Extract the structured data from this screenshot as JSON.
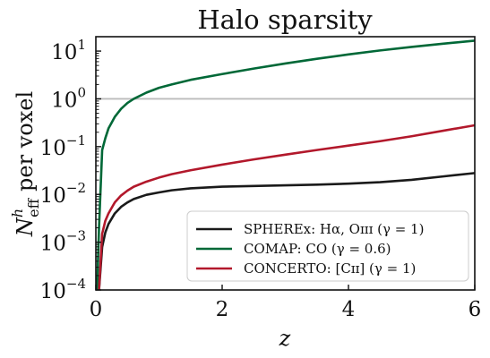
{
  "chart_data": {
    "type": "line",
    "title": "Halo sparsity",
    "xlabel": "z",
    "ylabel": "N̄ʰ_eff per voxel",
    "ylabel_parts": {
      "symbol": "N",
      "superscript": "h",
      "subscript": "eff",
      "rest": "per voxel"
    },
    "xlim": [
      0,
      6
    ],
    "ylim": [
      0.0001,
      20
    ],
    "yscale": "log",
    "x_ticks": [
      0,
      2,
      4,
      6
    ],
    "x_tick_labels": [
      "0",
      "2",
      "4",
      "6"
    ],
    "y_ticks": [
      0.0001,
      0.001,
      0.01,
      0.1,
      1,
      10
    ],
    "y_tick_labels": [
      {
        "base": "10",
        "exp": "−4"
      },
      {
        "base": "10",
        "exp": "−3"
      },
      {
        "base": "10",
        "exp": "−2"
      },
      {
        "base": "10",
        "exp": "−1"
      },
      {
        "base": "10",
        "exp": "0"
      },
      {
        "base": "10",
        "exp": "1"
      }
    ],
    "reference_line": {
      "y": 1,
      "color": "#bbbbbb"
    },
    "legend_position": "lower-right",
    "series": [
      {
        "name": "SPHEREx: Hα, Oɪɪɪ (γ = 1)",
        "color": "#1a1a1a",
        "x": [
          0.05,
          0.1,
          0.15,
          0.2,
          0.3,
          0.4,
          0.5,
          0.6,
          0.8,
          1.0,
          1.2,
          1.5,
          2.0,
          2.5,
          3.0,
          3.5,
          4.0,
          4.5,
          5.0,
          5.5,
          6.0
        ],
        "y": [
          0.0001,
          0.0008,
          0.0016,
          0.0024,
          0.004,
          0.0055,
          0.0068,
          0.008,
          0.0098,
          0.011,
          0.0122,
          0.0134,
          0.0145,
          0.015,
          0.0155,
          0.016,
          0.0168,
          0.018,
          0.0202,
          0.0238,
          0.028
        ]
      },
      {
        "name": "COMAP: CO (γ = 0.6)",
        "color": "#006837",
        "x": [
          0.02,
          0.05,
          0.1,
          0.15,
          0.2,
          0.3,
          0.4,
          0.5,
          0.6,
          0.8,
          1.0,
          1.2,
          1.5,
          2.0,
          2.5,
          3.0,
          3.5,
          4.0,
          4.5,
          5.0,
          5.5,
          6.0
        ],
        "y": [
          0.0001,
          0.002,
          0.085,
          0.15,
          0.24,
          0.42,
          0.62,
          0.82,
          1.0,
          1.35,
          1.7,
          2.0,
          2.5,
          3.3,
          4.3,
          5.5,
          6.9,
          8.5,
          10.3,
          12.2,
          14.3,
          16.5
        ]
      },
      {
        "name": "CONCERTO: [Cɪɪ] (γ = 1)",
        "color": "#b2182b",
        "x": [
          0.05,
          0.1,
          0.15,
          0.2,
          0.3,
          0.4,
          0.5,
          0.6,
          0.8,
          1.0,
          1.2,
          1.5,
          2.0,
          2.5,
          3.0,
          3.5,
          4.0,
          4.5,
          5.0,
          5.5,
          6.0
        ],
        "y": [
          0.0001,
          0.0015,
          0.0028,
          0.004,
          0.0068,
          0.0095,
          0.012,
          0.0145,
          0.0185,
          0.0225,
          0.0265,
          0.032,
          0.042,
          0.054,
          0.068,
          0.085,
          0.105,
          0.13,
          0.165,
          0.215,
          0.28
        ]
      }
    ]
  }
}
